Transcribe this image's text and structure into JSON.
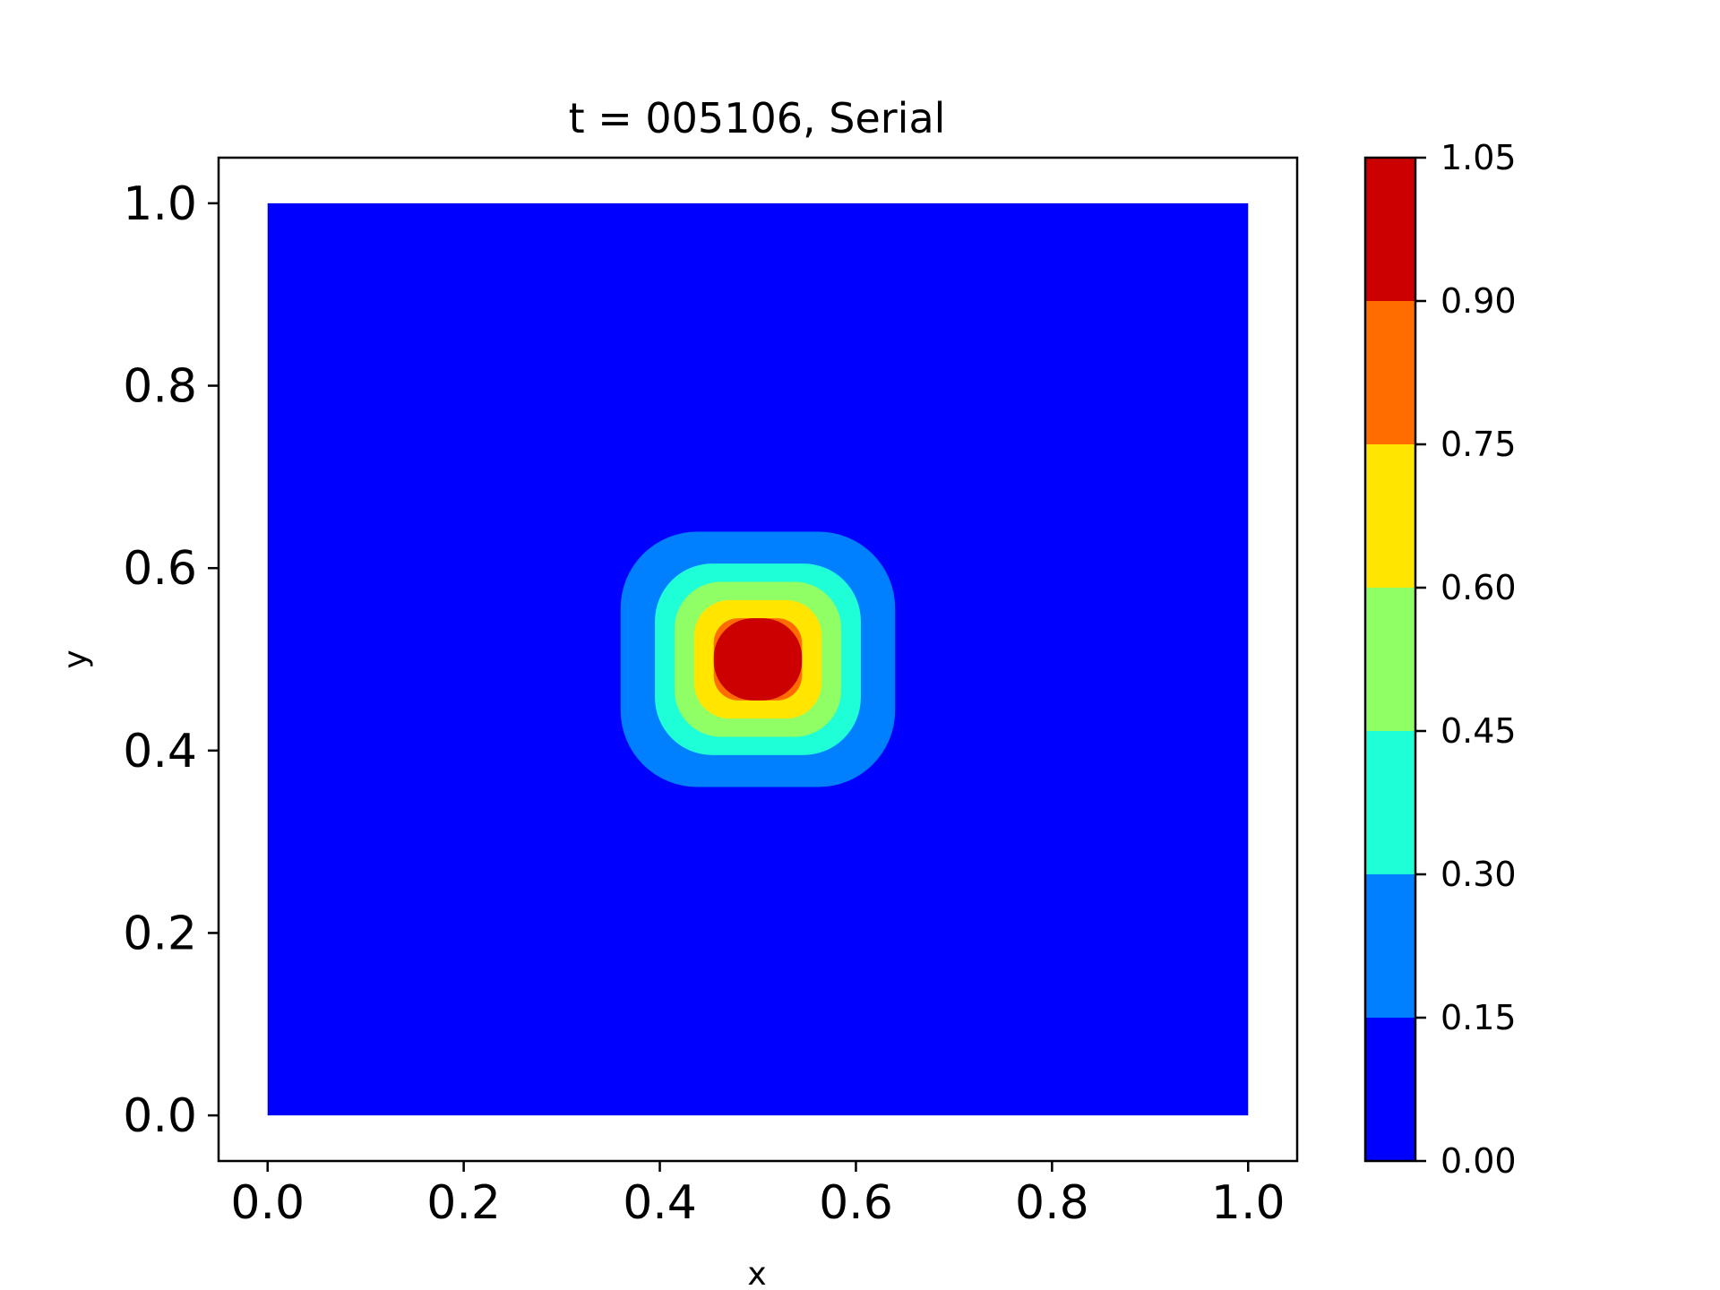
{
  "chart_data": {
    "type": "contour",
    "title": "t = 005106, Serial",
    "xlabel": "x",
    "ylabel": "y",
    "xlim": [
      -0.05,
      1.05
    ],
    "ylim": [
      -0.05,
      1.05
    ],
    "x_ticks": [
      "0.0",
      "0.2",
      "0.4",
      "0.6",
      "0.8",
      "1.0"
    ],
    "y_ticks": [
      "0.0",
      "0.2",
      "0.4",
      "0.6",
      "0.8",
      "1.0"
    ],
    "domain": {
      "x": [
        0.0,
        1.0
      ],
      "y": [
        0.0,
        1.0
      ]
    },
    "colormap": "jet",
    "colorbar": {
      "levels": [
        0.0,
        0.15,
        0.3,
        0.45,
        0.6,
        0.75,
        0.9,
        1.05
      ],
      "tick_labels": [
        "0.00",
        "0.15",
        "0.30",
        "0.45",
        "0.60",
        "0.75",
        "0.90",
        "1.05"
      ],
      "band_colors": [
        "#0000ff",
        "#0080ff",
        "#1effd8",
        "#90ff66",
        "#ffe500",
        "#ff6d00",
        "#cc0000"
      ]
    },
    "peak": {
      "x": 0.5,
      "y": 0.5,
      "value": 1.0
    },
    "contours": [
      {
        "level": 0.15,
        "x_range": [
          0.36,
          0.64
        ],
        "y_range": [
          0.36,
          0.64
        ]
      },
      {
        "level": 0.3,
        "x_range": [
          0.395,
          0.605
        ],
        "y_range": [
          0.395,
          0.605
        ]
      },
      {
        "level": 0.45,
        "x_range": [
          0.415,
          0.585
        ],
        "y_range": [
          0.415,
          0.585
        ]
      },
      {
        "level": 0.6,
        "x_range": [
          0.435,
          0.565
        ],
        "y_range": [
          0.435,
          0.565
        ]
      },
      {
        "level": 0.75,
        "x_range": [
          0.455,
          0.545
        ],
        "y_range": [
          0.455,
          0.545
        ]
      },
      {
        "level": 0.9,
        "x_range": [
          0.455,
          0.545
        ],
        "y_range": [
          0.455,
          0.545
        ]
      }
    ]
  }
}
